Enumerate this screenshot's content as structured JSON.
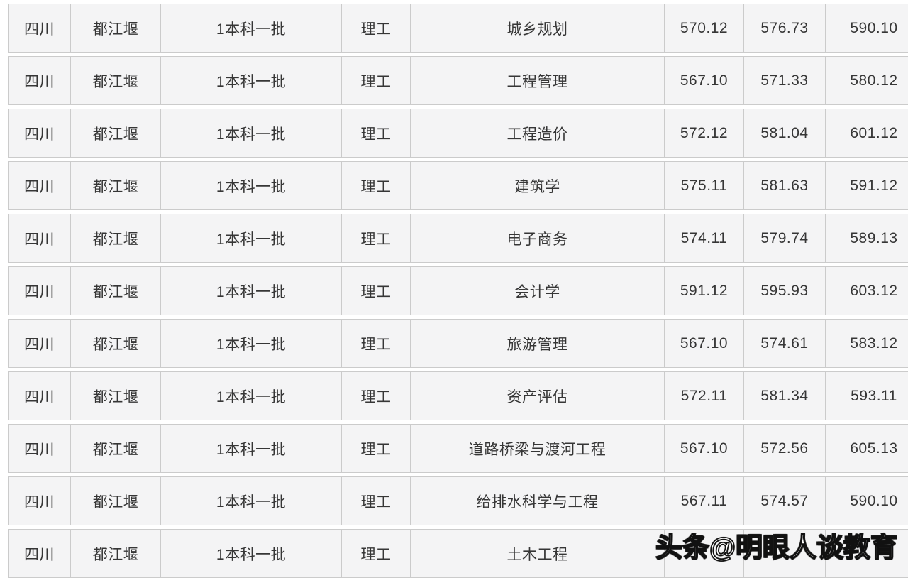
{
  "table": {
    "rows": [
      [
        "四川",
        "都江堰",
        "1本科一批",
        "理工",
        "城乡规划",
        "570.12",
        "576.73",
        "590.10"
      ],
      [
        "四川",
        "都江堰",
        "1本科一批",
        "理工",
        "工程管理",
        "567.10",
        "571.33",
        "580.12"
      ],
      [
        "四川",
        "都江堰",
        "1本科一批",
        "理工",
        "工程造价",
        "572.12",
        "581.04",
        "601.12"
      ],
      [
        "四川",
        "都江堰",
        "1本科一批",
        "理工",
        "建筑学",
        "575.11",
        "581.63",
        "591.12"
      ],
      [
        "四川",
        "都江堰",
        "1本科一批",
        "理工",
        "电子商务",
        "574.11",
        "579.74",
        "589.13"
      ],
      [
        "四川",
        "都江堰",
        "1本科一批",
        "理工",
        "会计学",
        "591.12",
        "595.93",
        "603.12"
      ],
      [
        "四川",
        "都江堰",
        "1本科一批",
        "理工",
        "旅游管理",
        "567.10",
        "574.61",
        "583.12"
      ],
      [
        "四川",
        "都江堰",
        "1本科一批",
        "理工",
        "资产评估",
        "572.11",
        "581.34",
        "593.11"
      ],
      [
        "四川",
        "都江堰",
        "1本科一批",
        "理工",
        "道路桥梁与渡河工程",
        "567.10",
        "572.56",
        "605.13"
      ],
      [
        "四川",
        "都江堰",
        "1本科一批",
        "理工",
        "给排水科学与工程",
        "567.11",
        "574.57",
        "590.10"
      ],
      [
        "四川",
        "都江堰",
        "1本科一批",
        "理工",
        "土木工程",
        "",
        "",
        ""
      ]
    ]
  },
  "watermark": {
    "text": "头条@明眼人谈教育"
  },
  "colors": {
    "cell_bg": "#f4f4f5",
    "cell_border": "#cbcbcb",
    "text": "#363636",
    "watermark_fill": "#ffffff",
    "watermark_outline": "#111111",
    "page_bg": "#ffffff"
  }
}
